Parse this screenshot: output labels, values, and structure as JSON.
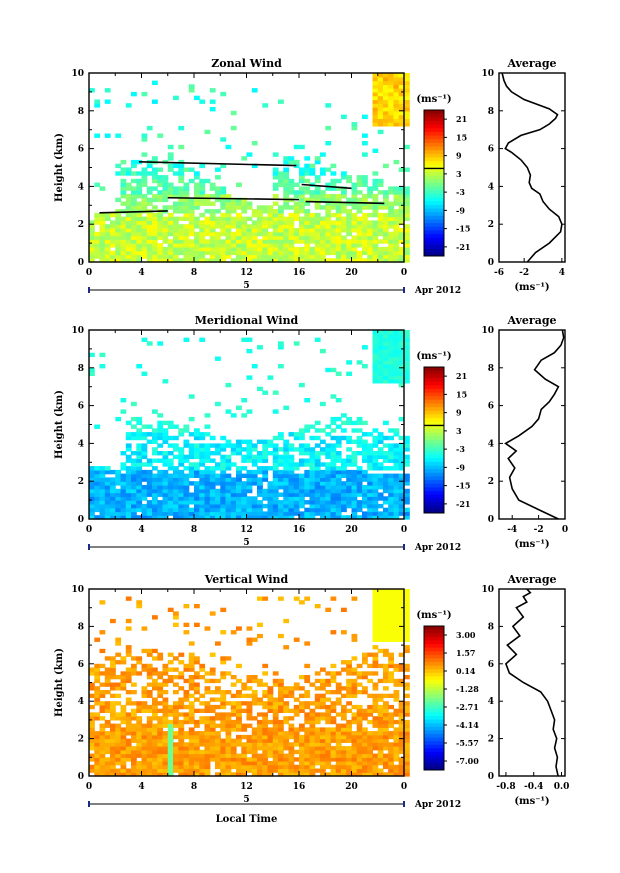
{
  "chart_data": [
    {
      "type": "heatmap",
      "title": "Zonal Wind",
      "ylabel": "Height (km)",
      "xlabel": "",
      "xlim": [
        0,
        24
      ],
      "ylim": [
        0,
        10
      ],
      "xticks": [
        "0",
        "4",
        "8",
        "12",
        "16",
        "20",
        "0"
      ],
      "yticks": [
        "0",
        "2",
        "4",
        "6",
        "8",
        "10"
      ],
      "date_marker": "5",
      "date_label": "Apr 2012",
      "colorbar": {
        "unit": "(ms⁻¹)",
        "ticks": [
          "21",
          "15",
          "9",
          "3",
          "-3",
          "-9",
          "-15",
          "-21"
        ]
      },
      "trend_lines": [
        {
          "x": [
            0.8,
            6.0
          ],
          "y": [
            2.6,
            2.7
          ]
        },
        {
          "x": [
            3.8,
            15.8
          ],
          "y": [
            5.3,
            5.1
          ]
        },
        {
          "x": [
            6.0,
            16.0
          ],
          "y": [
            3.4,
            3.3
          ]
        },
        {
          "x": [
            16.2,
            20.0
          ],
          "y": [
            4.1,
            3.9
          ]
        },
        {
          "x": [
            16.5,
            22.5
          ],
          "y": [
            3.2,
            3.1
          ]
        }
      ],
      "profile": {
        "title": "Average",
        "xlabel": "(ms⁻¹)",
        "xlim": [
          -6,
          4.5
        ],
        "xticks": [
          "-6",
          "-2",
          "4"
        ],
        "tickvals": [
          -6,
          -2,
          4
        ],
        "yticks": [
          "0",
          "2",
          "4",
          "6",
          "8",
          "10"
        ],
        "x": [
          -1.5,
          -0.2,
          2.0,
          3.8,
          4.0,
          3.5,
          2.0,
          1.0,
          0.5,
          -0.8,
          -1.2,
          -1.0,
          -1.5,
          -2.5,
          -4.0,
          -5.0,
          -4.5,
          -2.5,
          0.5,
          2.0,
          3.0,
          3.3,
          2.0,
          -2.0,
          -4.0,
          -4.8,
          -5.2,
          -5.5
        ],
        "y": [
          0.0,
          0.5,
          1.0,
          1.6,
          2.0,
          2.4,
          2.8,
          3.2,
          3.6,
          3.9,
          4.2,
          4.6,
          5.0,
          5.4,
          5.8,
          6.0,
          6.3,
          6.7,
          7.0,
          7.3,
          7.6,
          7.8,
          8.1,
          8.6,
          9.0,
          9.3,
          9.6,
          10.0
        ]
      }
    },
    {
      "type": "heatmap",
      "title": "Meridional Wind",
      "ylabel": "Height (km)",
      "xlabel": "",
      "xlim": [
        0,
        24
      ],
      "ylim": [
        0,
        10
      ],
      "xticks": [
        "0",
        "4",
        "8",
        "12",
        "16",
        "20",
        "0"
      ],
      "yticks": [
        "0",
        "2",
        "4",
        "6",
        "8",
        "10"
      ],
      "date_marker": "5",
      "date_label": "Apr 2012",
      "colorbar": {
        "unit": "(ms⁻¹)",
        "ticks": [
          "21",
          "15",
          "9",
          "3",
          "-3",
          "-9",
          "-15",
          "-21"
        ]
      },
      "trend_lines": [],
      "profile": {
        "title": "Average",
        "xlabel": "(ms⁻¹)",
        "xlim": [
          -5,
          0
        ],
        "xticks": [
          "-4",
          "-2",
          "0"
        ],
        "tickvals": [
          -4,
          -2,
          0
        ],
        "yticks": [
          "0",
          "2",
          "4",
          "6",
          "8",
          "10"
        ],
        "x": [
          -0.5,
          -2.0,
          -3.5,
          -4.0,
          -4.2,
          -3.8,
          -4.3,
          -3.7,
          -4.5,
          -3.5,
          -2.5,
          -2.0,
          -1.8,
          -1.2,
          -0.8,
          -0.5,
          -1.5,
          -2.3,
          -1.8,
          -0.8,
          -0.3,
          -0.1,
          -0.2
        ],
        "y": [
          0.0,
          0.5,
          1.0,
          1.6,
          2.2,
          2.7,
          3.2,
          3.6,
          4.0,
          4.4,
          4.9,
          5.3,
          5.8,
          6.2,
          6.6,
          7.0,
          7.4,
          7.9,
          8.4,
          8.8,
          9.2,
          9.6,
          10.0
        ]
      }
    },
    {
      "type": "heatmap",
      "title": "Vertical Wind",
      "ylabel": "Height (km)",
      "xlabel": "Local Time",
      "xlim": [
        0,
        24
      ],
      "ylim": [
        0,
        10
      ],
      "xticks": [
        "0",
        "4",
        "8",
        "12",
        "16",
        "20",
        "0"
      ],
      "yticks": [
        "0",
        "2",
        "4",
        "6",
        "8",
        "10"
      ],
      "date_marker": "5",
      "date_label": "Apr 2012",
      "colorbar": {
        "unit": "(ms⁻¹)",
        "ticks": [
          "3.00",
          "1.57",
          "0.14",
          "-1.28",
          "-2.71",
          "-4.14",
          "-5.57",
          "-7.00"
        ]
      },
      "trend_lines": [],
      "profile": {
        "title": "Average",
        "xlabel": "(ms⁻¹)",
        "xlim": [
          -0.9,
          0.05
        ],
        "xticks": [
          "-0.8",
          "-0.4",
          "0.0"
        ],
        "tickvals": [
          -0.8,
          -0.4,
          0.0
        ],
        "yticks": [
          "0",
          "2",
          "4",
          "6",
          "8",
          "10"
        ],
        "x": [
          -0.05,
          -0.08,
          -0.06,
          -0.1,
          -0.07,
          -0.12,
          -0.1,
          -0.15,
          -0.2,
          -0.3,
          -0.55,
          -0.75,
          -0.8,
          -0.65,
          -0.78,
          -0.6,
          -0.7,
          -0.55,
          -0.65,
          -0.5,
          -0.55,
          -0.45,
          -0.5
        ],
        "y": [
          0.0,
          0.5,
          1.0,
          1.5,
          2.0,
          2.5,
          3.0,
          3.5,
          4.0,
          4.5,
          5.0,
          5.5,
          6.0,
          6.5,
          7.0,
          7.5,
          8.0,
          8.5,
          9.0,
          9.3,
          9.6,
          9.8,
          10.0
        ]
      }
    }
  ]
}
